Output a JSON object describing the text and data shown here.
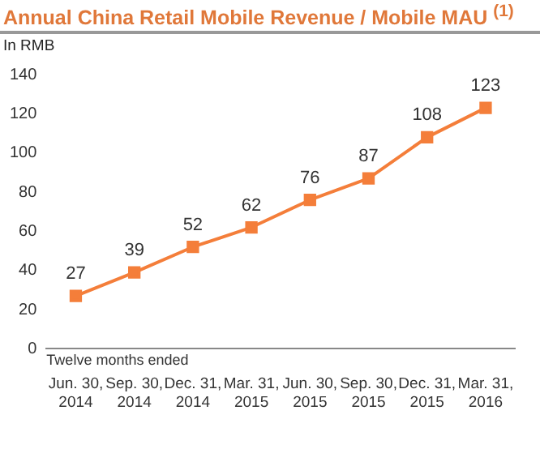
{
  "chart_data": {
    "type": "line",
    "title": "Annual China Retail Mobile Revenue / Mobile MAU $^{(1)}$",
    "subtitle": "In RMB",
    "categories": [
      "Jun. 30, 2014",
      "Sep. 30, 2014",
      "Dec. 31, 2014",
      "Mar. 31, 2015",
      "Jun. 30, 2015",
      "Sep. 30, 2015",
      "Dec. 31, 2015",
      "Mar. 31, 2016"
    ],
    "values": [
      27,
      39,
      52,
      62,
      76,
      87,
      108,
      123
    ],
    "color": "#f47e3a",
    "marker": "square",
    "data_labels": true,
    "ylim": [
      0,
      140
    ],
    "yticks": [
      0,
      20,
      40,
      60,
      80,
      100,
      120,
      140
    ],
    "grid": false,
    "legend": false,
    "annotations": [
      "Twelve months ended"
    ]
  }
}
